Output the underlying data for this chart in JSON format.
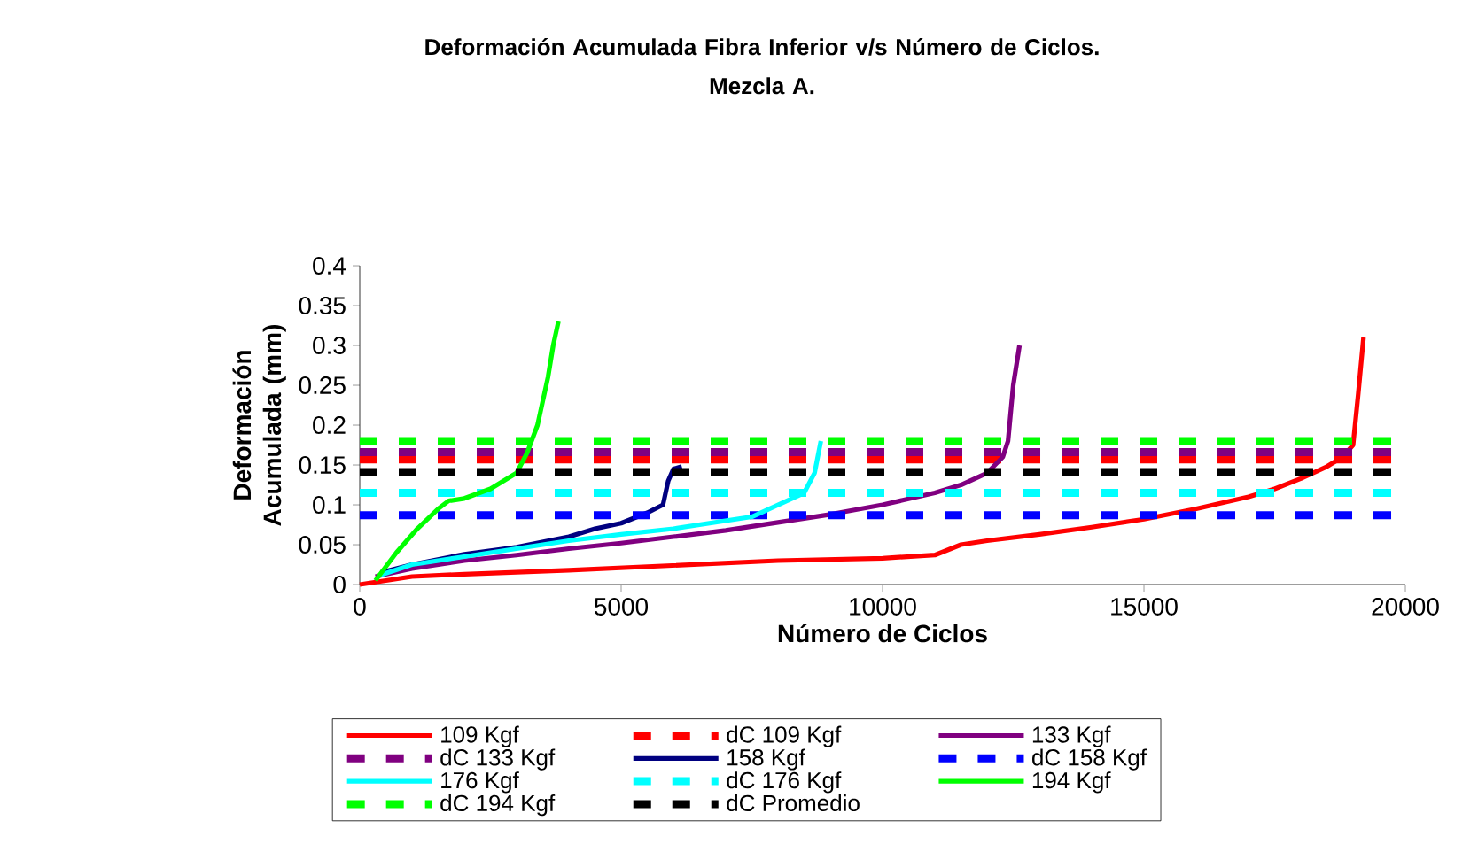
{
  "chart_data": {
    "type": "line",
    "title": "Deformación  Acumulada Fibra Inferior v/s Número de Ciclos.",
    "subtitle": "Mezcla A.",
    "xlabel": "Número de Ciclos",
    "ylabel": "Deformación Acumulada (mm)",
    "xlim": [
      0,
      20000
    ],
    "ylim": [
      0,
      0.4
    ],
    "xticks": [
      0,
      5000,
      10000,
      15000,
      20000
    ],
    "yticks": [
      0,
      0.05,
      0.1,
      0.15,
      0.2,
      0.25,
      0.3,
      0.35,
      0.4
    ],
    "legend": "bottom",
    "series": [
      {
        "name": "109 Kgf",
        "color": "#ff0000",
        "line_style": "solid",
        "x": [
          0,
          500,
          1000,
          2000,
          4000,
          6000,
          8000,
          10000,
          11000,
          11500,
          12000,
          13000,
          14000,
          15000,
          16000,
          17000,
          17500,
          18000,
          18500,
          18800,
          19000,
          19100,
          19200
        ],
        "values": [
          0,
          0.005,
          0.01,
          0.013,
          0.018,
          0.024,
          0.03,
          0.033,
          0.037,
          0.05,
          0.055,
          0.063,
          0.072,
          0.082,
          0.095,
          0.11,
          0.12,
          0.133,
          0.148,
          0.16,
          0.175,
          0.24,
          0.31
        ]
      },
      {
        "name": "dC 109 Kgf",
        "color": "#ff0000",
        "line_style": "dashed",
        "x": [
          0,
          20000
        ],
        "values": [
          0.157,
          0.157
        ]
      },
      {
        "name": "133 Kgf",
        "color": "#800080",
        "line_style": "solid",
        "x": [
          300,
          1000,
          2000,
          3000,
          4000,
          5000,
          6000,
          7000,
          8000,
          9000,
          10000,
          11000,
          11500,
          12000,
          12300,
          12400,
          12500,
          12620
        ],
        "values": [
          0.01,
          0.02,
          0.03,
          0.037,
          0.045,
          0.052,
          0.06,
          0.068,
          0.078,
          0.088,
          0.1,
          0.115,
          0.125,
          0.14,
          0.16,
          0.18,
          0.25,
          0.3
        ]
      },
      {
        "name": "dC 133 Kgf",
        "color": "#800080",
        "line_style": "dashed",
        "x": [
          0,
          20000
        ],
        "values": [
          0.166,
          0.166
        ]
      },
      {
        "name": "158 Kgf",
        "color": "#000080",
        "line_style": "solid",
        "x": [
          400,
          1000,
          2000,
          3000,
          4000,
          4500,
          5000,
          5500,
          5800,
          5900,
          6000,
          6160
        ],
        "values": [
          0.015,
          0.025,
          0.038,
          0.047,
          0.06,
          0.07,
          0.077,
          0.09,
          0.1,
          0.13,
          0.145,
          0.148
        ]
      },
      {
        "name": "dC 158 Kgf",
        "color": "#0000ff",
        "line_style": "dashed",
        "x": [
          0,
          20000
        ],
        "values": [
          0.087,
          0.087
        ]
      },
      {
        "name": "176 Kgf",
        "color": "#00ffff",
        "line_style": "solid",
        "x": [
          400,
          1000,
          2000,
          3000,
          4000,
          5000,
          6000,
          7000,
          7500,
          8000,
          8500,
          8700,
          8820
        ],
        "values": [
          0.012,
          0.025,
          0.035,
          0.045,
          0.055,
          0.063,
          0.07,
          0.08,
          0.085,
          0.1,
          0.115,
          0.14,
          0.18
        ]
      },
      {
        "name": "dC 176 Kgf",
        "color": "#00ffff",
        "line_style": "dashed",
        "x": [
          0,
          20000
        ],
        "values": [
          0.115,
          0.115
        ]
      },
      {
        "name": "194 Kgf",
        "color": "#00ff00",
        "line_style": "solid",
        "x": [
          300,
          700,
          1100,
          1500,
          1700,
          2000,
          2500,
          3000,
          3200,
          3400,
          3600,
          3700,
          3800
        ],
        "values": [
          0.005,
          0.04,
          0.07,
          0.095,
          0.105,
          0.108,
          0.12,
          0.14,
          0.165,
          0.2,
          0.26,
          0.3,
          0.33
        ]
      },
      {
        "name": "dC 194 Kgf",
        "color": "#00ff00",
        "line_style": "dashed",
        "x": [
          0,
          20000
        ],
        "values": [
          0.18,
          0.18
        ]
      },
      {
        "name": "dC Promedio",
        "color": "#000000",
        "line_style": "dashed",
        "x": [
          0,
          20000
        ],
        "values": [
          0.141,
          0.141
        ]
      }
    ]
  }
}
